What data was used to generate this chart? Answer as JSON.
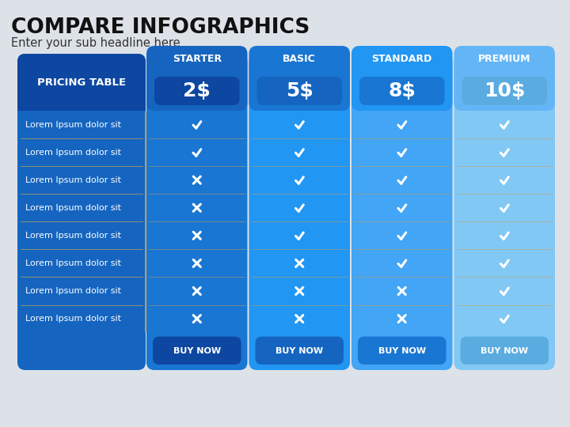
{
  "title": "COMPARE INFOGRAPHICS",
  "subtitle": "Enter your sub headline here",
  "background_color": "#dde2e8",
  "plans": [
    "STARTER",
    "BASIC",
    "STANDARD",
    "PREMIUM"
  ],
  "prices": [
    "2$",
    "5$",
    "8$",
    "10$"
  ],
  "plan_tab_colors": [
    "#1565c0",
    "#1976d2",
    "#2196f3",
    "#64b5f6"
  ],
  "plan_body_colors": [
    "#1976d2",
    "#2196f3",
    "#42a5f5",
    "#82c8f5"
  ],
  "plan_price_box_colors": [
    "#0d47a1",
    "#1565c0",
    "#1976d2",
    "#5aace0"
  ],
  "buy_btn_bg_colors": [
    "#1565c0",
    "#1976d2",
    "#2196f3",
    "#64b5f6"
  ],
  "buy_btn_inner_colors": [
    "#0d47a1",
    "#1565c0",
    "#1976d2",
    "#5aace0"
  ],
  "label_col_header_color": "#0d47a1",
  "label_col_body_color": "#1565c0",
  "row_alt_color": "#1a6bbf",
  "rows": [
    "Lorem Ipsum dolor sit",
    "Lorem Ipsum dolor sit",
    "Lorem Ipsum dolor sit",
    "Lorem Ipsum dolor sit",
    "Lorem Ipsum dolor sit",
    "Lorem Ipsum dolor sit",
    "Lorem Ipsum dolor sit",
    "Lorem Ipsum dolor sit"
  ],
  "checks": [
    [
      true,
      true,
      true,
      true
    ],
    [
      true,
      true,
      true,
      true
    ],
    [
      false,
      true,
      true,
      true
    ],
    [
      false,
      true,
      true,
      true
    ],
    [
      false,
      true,
      true,
      true
    ],
    [
      false,
      false,
      true,
      true
    ],
    [
      false,
      false,
      false,
      true
    ],
    [
      false,
      false,
      false,
      true
    ]
  ],
  "row_sep_color": "#c8a050",
  "col_sep_color": "#c8a050"
}
